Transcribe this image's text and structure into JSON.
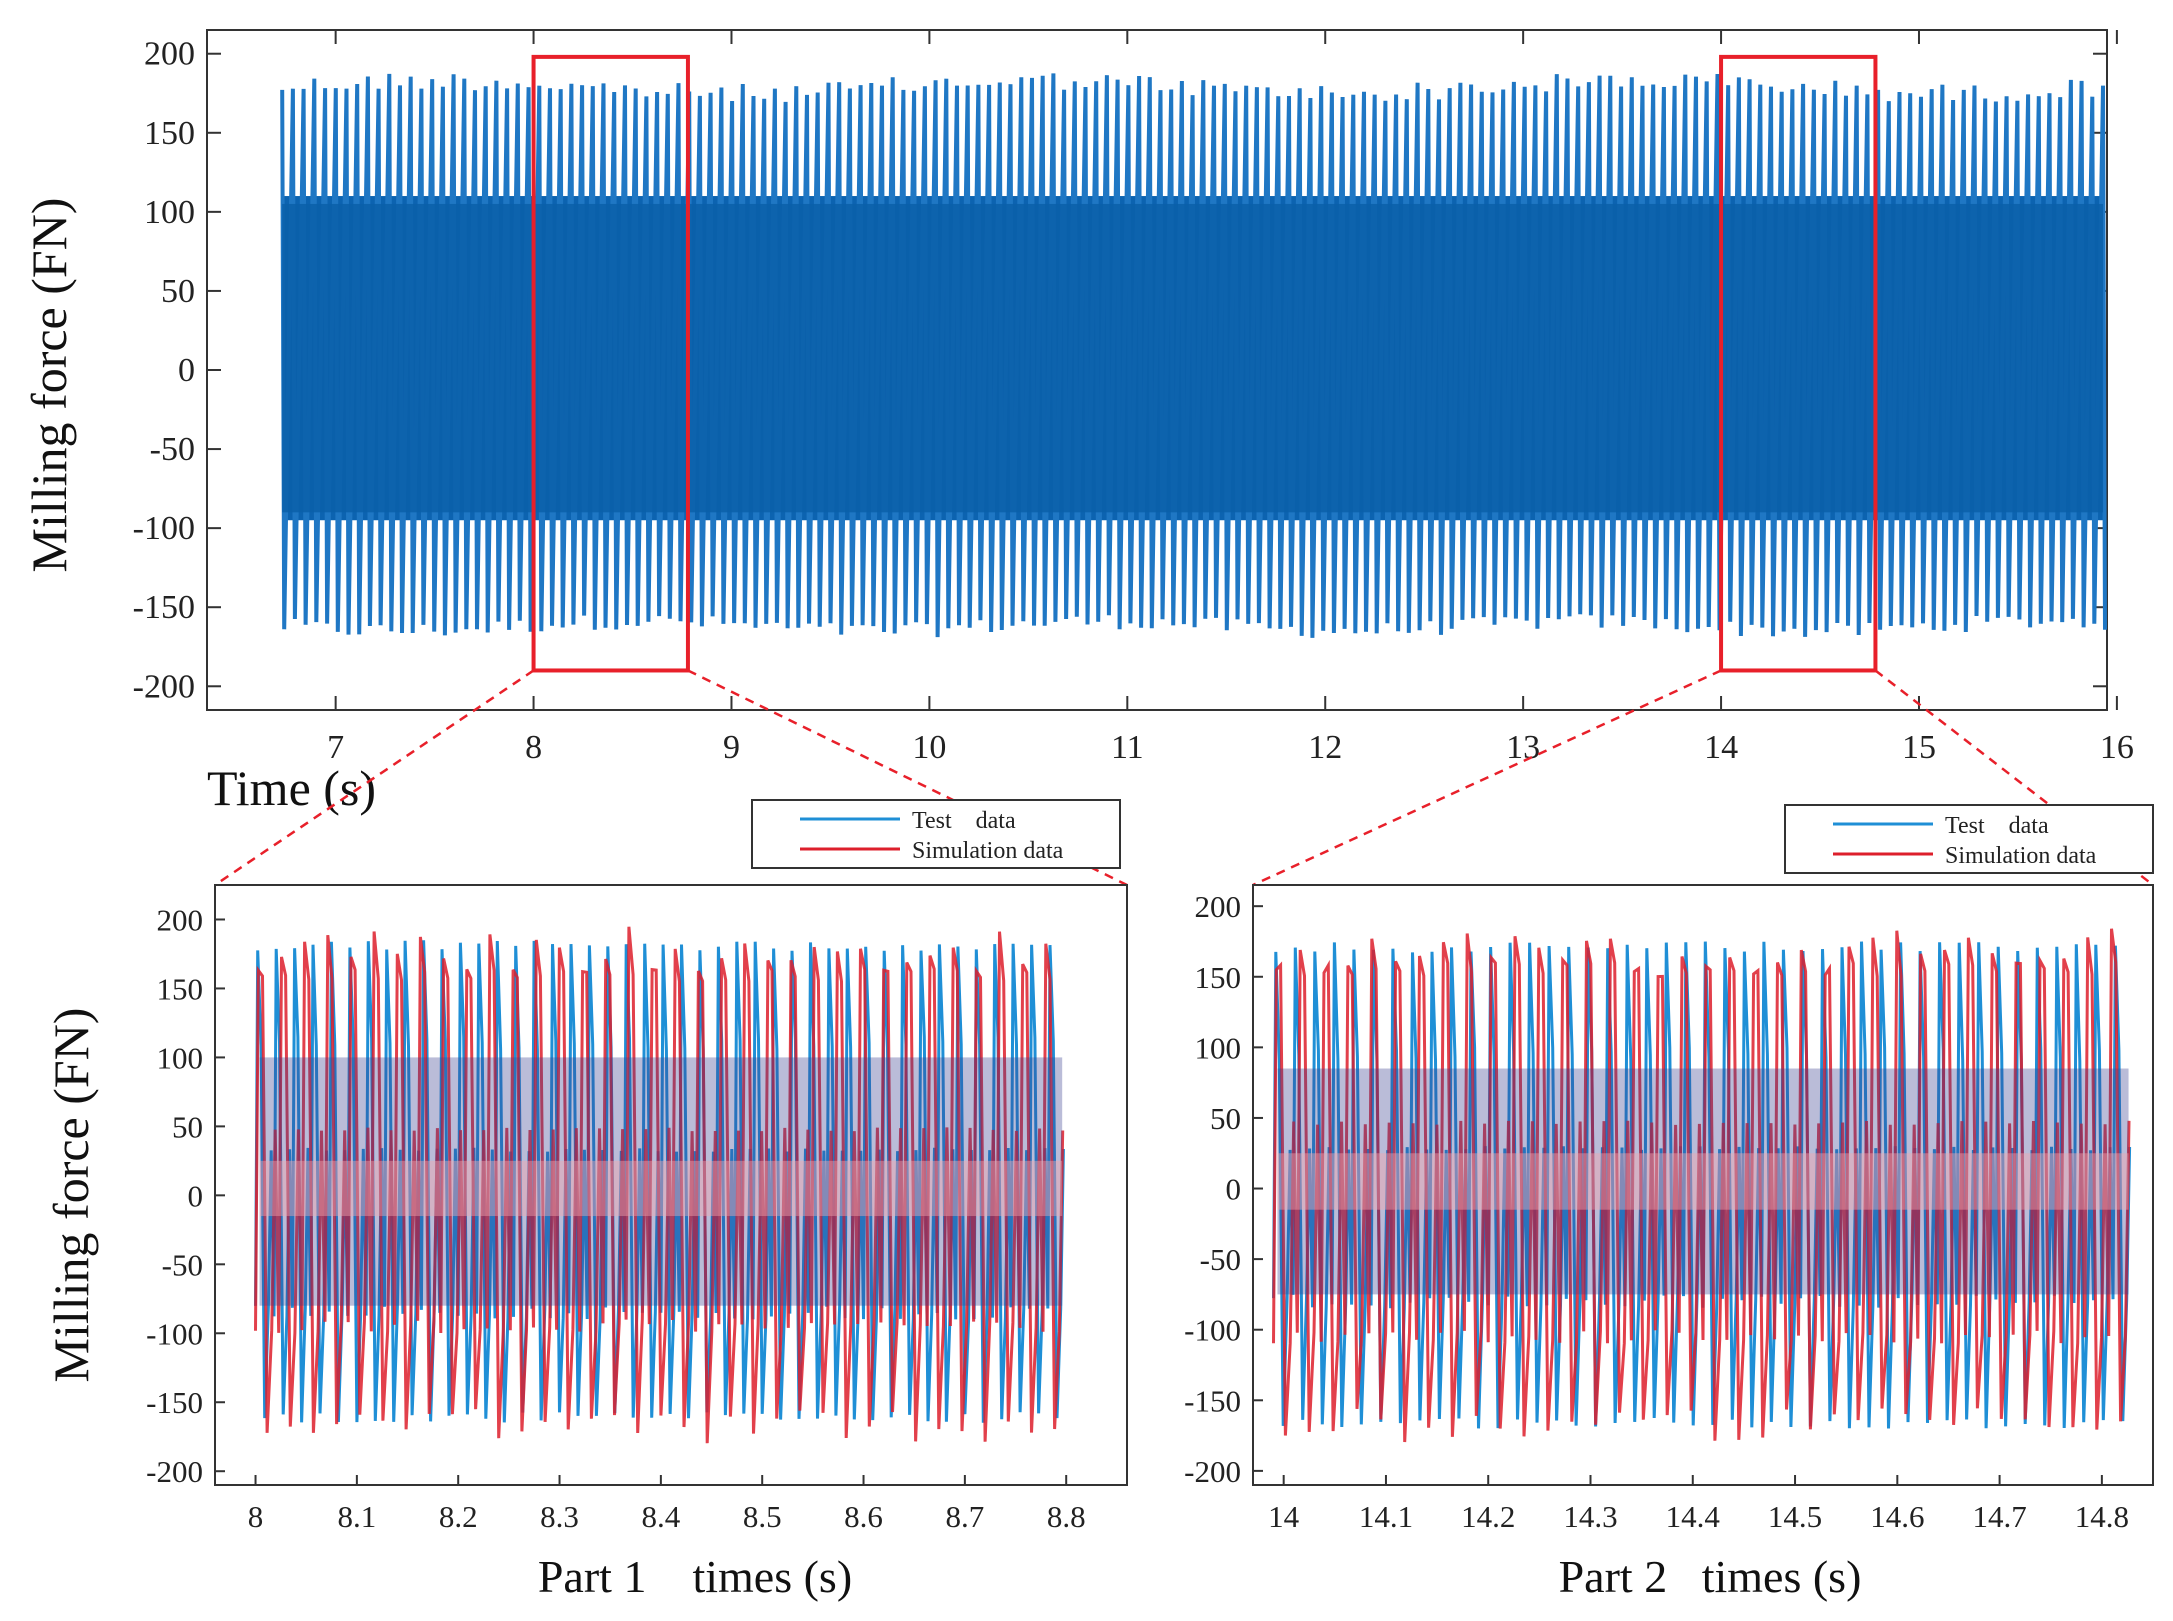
{
  "chart_data": [
    {
      "id": "overview",
      "type": "line",
      "title": "",
      "xlabel": "Time (s)",
      "ylabel": "Milling force (FN)",
      "xlim": [
        6.35,
        15.95
      ],
      "ylim": [
        -215,
        215
      ],
      "x_ticks": [
        7,
        8,
        9,
        10,
        11,
        12,
        13,
        14,
        15,
        16
      ],
      "y_ticks": [
        200,
        150,
        100,
        50,
        0,
        -50,
        -100,
        -150,
        -200
      ],
      "series": [
        {
          "name": "Test data",
          "color": "#1f77c4",
          "x_range": [
            6.73,
            15.93
          ],
          "upper_peak": 185,
          "lower_peak": -167,
          "dense_band": [
            -95,
            110
          ]
        }
      ],
      "highlight_boxes": [
        {
          "name": "Part 1",
          "x": [
            8.0,
            8.78
          ],
          "y": [
            -190,
            198
          ]
        },
        {
          "name": "Part 2",
          "x": [
            14.0,
            14.78
          ],
          "y": [
            -190,
            198
          ]
        }
      ],
      "box_color": "#e8202a"
    },
    {
      "id": "part1",
      "type": "line",
      "title": "",
      "xlabel": "Part 1    times (s)",
      "ylabel": "Milling force (FN)",
      "xlim": [
        7.96,
        8.86
      ],
      "ylim": [
        -210,
        225
      ],
      "x_ticks": [
        "8",
        "8.1",
        "8.2",
        "8.3",
        "8.4",
        "8.5",
        "8.6",
        "8.7",
        "8.8"
      ],
      "y_ticks": [
        200,
        150,
        100,
        50,
        0,
        -50,
        -100,
        -150,
        -200
      ],
      "legend": {
        "position": "top-right",
        "entries": [
          "Test    data",
          "Simulation data"
        ]
      },
      "series": [
        {
          "name": "Test data",
          "color": "#1f8fd6",
          "x_range": [
            8.0,
            8.8
          ],
          "cycles": 44,
          "upper_peak": 185,
          "lower_peak": -165,
          "band": [
            -90,
            115
          ]
        },
        {
          "name": "Simulation data",
          "color": "#dd1f2b",
          "x_range": [
            8.0,
            8.8
          ],
          "cycles": 35,
          "upper_peak": 195,
          "lower_peak": -180,
          "band": [
            -100,
            165
          ]
        }
      ]
    },
    {
      "id": "part2",
      "type": "line",
      "title": "",
      "xlabel": "Part 2   times (s)",
      "ylabel": "",
      "xlim": [
        13.97,
        14.85
      ],
      "ylim": [
        -210,
        215
      ],
      "x_ticks": [
        "14",
        "14.1",
        "14.2",
        "14.3",
        "14.4",
        "14.5",
        "14.6",
        "14.7",
        "14.8"
      ],
      "y_ticks": [
        200,
        150,
        100,
        50,
        0,
        -50,
        -100,
        -150,
        -200
      ],
      "legend": {
        "position": "top-right",
        "entries": [
          "Test    data",
          "Simulation data"
        ]
      },
      "series": [
        {
          "name": "Test data",
          "color": "#1f8fd6",
          "x_range": [
            13.99,
            14.83
          ],
          "cycles": 44,
          "upper_peak": 175,
          "lower_peak": -170,
          "band": [
            -85,
            100
          ]
        },
        {
          "name": "Simulation data",
          "color": "#dd1f2b",
          "x_range": [
            13.99,
            14.83
          ],
          "cycles": 36,
          "upper_peak": 185,
          "lower_peak": -180,
          "band": [
            -110,
            160
          ]
        }
      ]
    }
  ]
}
